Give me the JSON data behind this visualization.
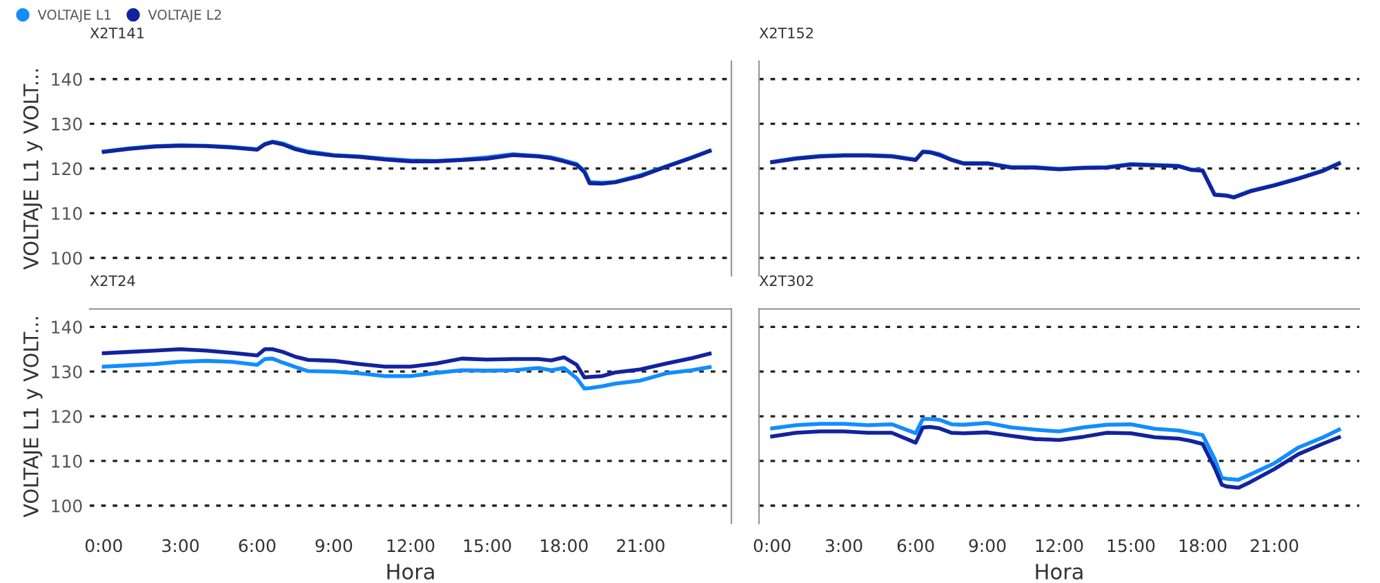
{
  "chart_data": [
    {
      "type": "line",
      "title": "X2T141",
      "ylabel": "VOLTAJE L1 y VOLT...",
      "legend": "top left",
      "grid": "y",
      "tick_labels": "y",
      "x": [
        0,
        1,
        2,
        3,
        4,
        5,
        6,
        6.3,
        6.6,
        7,
        7.5,
        8,
        9,
        10,
        11,
        12,
        13,
        14,
        15,
        16,
        17,
        17.5,
        18,
        18.5,
        18.8,
        19,
        19.5,
        20,
        21,
        22,
        23,
        23.7
      ],
      "xlim": [
        -0.55,
        24.55
      ],
      "ylim": [
        96,
        144
      ],
      "yticks": [
        100,
        110,
        120,
        130,
        140
      ],
      "series": [
        {
          "name": "VOLTAJE L1",
          "color": "#118dff",
          "values": [
            123.8,
            124.5,
            125,
            125.2,
            125.1,
            124.8,
            124.3,
            125.5,
            126,
            125.6,
            124.5,
            123.8,
            123,
            122.7,
            122.2,
            121.8,
            121.7,
            122,
            122.5,
            123.2,
            122.8,
            122.5,
            121.8,
            121,
            119.5,
            117,
            116.8,
            117,
            118.5,
            120.5,
            122.5,
            124
          ]
        },
        {
          "name": "VOLTAJE L2",
          "color": "#12239e",
          "values": [
            123.7,
            124.4,
            124.9,
            125.1,
            125,
            124.7,
            124.2,
            125.4,
            125.9,
            125.4,
            124.3,
            123.6,
            122.9,
            122.6,
            122,
            121.6,
            121.6,
            121.9,
            122.2,
            123,
            122.7,
            122.3,
            121.6,
            120.8,
            119.2,
            116.7,
            116.6,
            116.9,
            118.3,
            120.4,
            122.4,
            123.9
          ]
        }
      ]
    },
    {
      "type": "line",
      "title": "X2T152",
      "grid": "y",
      "tick_labels": false,
      "x": [
        0,
        1,
        2,
        3,
        4,
        5,
        6,
        6.3,
        6.6,
        7,
        7.5,
        8,
        9,
        10,
        11,
        12,
        13,
        14,
        15,
        16,
        17,
        17.5,
        18,
        18.5,
        19,
        19.3,
        20,
        21,
        22,
        23,
        23.7
      ],
      "xlim": [
        -0.55,
        24.55
      ],
      "ylim": [
        96,
        144
      ],
      "yticks": [
        100,
        110,
        120,
        130,
        140
      ],
      "series": [
        {
          "color": "#118dff",
          "values": [
            121.5,
            122.3,
            122.8,
            123,
            123,
            122.8,
            122,
            123.8,
            123.7,
            123.2,
            122,
            121.2,
            121.2,
            120.3,
            120.3,
            119.9,
            120.2,
            120.3,
            121,
            120.8,
            120.6,
            119.8,
            119.6,
            114.2,
            114,
            113.6,
            115,
            116.3,
            117.8,
            119.5,
            121.2
          ]
        },
        {
          "color": "#12239e",
          "values": [
            121.4,
            122.2,
            122.7,
            122.9,
            122.9,
            122.7,
            121.9,
            123.7,
            123.6,
            123,
            121.9,
            121.1,
            121.1,
            120.2,
            120.2,
            119.8,
            120.1,
            120.2,
            120.9,
            120.7,
            120.5,
            119.7,
            119.5,
            114.1,
            113.9,
            113.5,
            114.9,
            116.2,
            117.7,
            119.4,
            121.1
          ]
        }
      ]
    },
    {
      "type": "line",
      "title": "X2T24",
      "ylabel": "VOLTAJE L1 y VOLT...",
      "xlabel": "Hora",
      "grid": "y",
      "x": [
        0,
        1,
        2,
        3,
        4,
        5,
        6,
        6.3,
        6.6,
        7,
        7.5,
        8,
        9,
        10,
        11,
        12,
        13,
        14,
        15,
        16,
        17,
        17.5,
        18,
        18.5,
        18.8,
        19,
        19.5,
        20,
        21,
        22,
        23,
        23.7
      ],
      "xlim": [
        -0.55,
        24.55
      ],
      "ylim": [
        96,
        144
      ],
      "yticks": [
        100,
        110,
        120,
        130,
        140
      ],
      "xticks": [
        {
          "value": 0,
          "label": "0:00"
        },
        {
          "value": 3,
          "label": "3:00"
        },
        {
          "value": 6,
          "label": "6:00"
        },
        {
          "value": 9,
          "label": "9:00"
        },
        {
          "value": 12,
          "label": "12:00"
        },
        {
          "value": 15,
          "label": "15:00"
        },
        {
          "value": 18,
          "label": "18:00"
        },
        {
          "value": 21,
          "label": "21:00"
        }
      ],
      "series": [
        {
          "color": "#118dff",
          "values": [
            131.1,
            131.4,
            131.7,
            132.2,
            132.4,
            132.2,
            131.5,
            132.8,
            132.9,
            132,
            131,
            130.1,
            130,
            129.6,
            129,
            129,
            129.7,
            130.3,
            130.2,
            130.3,
            130.8,
            130.3,
            130.8,
            128.5,
            126.2,
            126.3,
            126.7,
            127.3,
            128,
            129.6,
            130.3,
            131
          ]
        },
        {
          "color": "#12239e",
          "values": [
            134.1,
            134.4,
            134.7,
            135,
            134.7,
            134.2,
            133.6,
            135,
            135,
            134.4,
            133.3,
            132.6,
            132.4,
            131.7,
            131.1,
            131.1,
            131.8,
            132.9,
            132.7,
            132.8,
            132.8,
            132.5,
            133.2,
            131.5,
            128.7,
            128.8,
            129,
            129.8,
            130.5,
            131.8,
            133,
            134
          ]
        }
      ]
    },
    {
      "type": "line",
      "title": "X2T302",
      "xlabel": "Hora",
      "grid": "y",
      "tick_labels": "x",
      "x": [
        0,
        1,
        2,
        3,
        4,
        5,
        6,
        6.3,
        6.6,
        7,
        7.5,
        8,
        9,
        10,
        11,
        12,
        13,
        14,
        15,
        16,
        17,
        17.5,
        18,
        18.5,
        18.8,
        19,
        19.5,
        20,
        21,
        22,
        23,
        23.7
      ],
      "xlim": [
        -0.55,
        24.55
      ],
      "ylim": [
        96,
        144
      ],
      "yticks": [
        100,
        110,
        120,
        130,
        140
      ],
      "xticks": [
        {
          "value": 0,
          "label": "0:00"
        },
        {
          "value": 3,
          "label": "3:00"
        },
        {
          "value": 6,
          "label": "6:00"
        },
        {
          "value": 9,
          "label": "9:00"
        },
        {
          "value": 12,
          "label": "12:00"
        },
        {
          "value": 15,
          "label": "15:00"
        },
        {
          "value": 18,
          "label": "18:00"
        },
        {
          "value": 21,
          "label": "21:00"
        }
      ],
      "series": [
        {
          "color": "#118dff",
          "values": [
            117.3,
            118,
            118.3,
            118.3,
            118,
            118.2,
            116.2,
            119.4,
            119.4,
            119.2,
            118.2,
            118.1,
            118.5,
            117.5,
            117,
            116.6,
            117.5,
            118.1,
            118.2,
            117.2,
            116.8,
            116.3,
            115.8,
            110.5,
            106.2,
            106,
            105.8,
            107,
            109.5,
            113,
            115.2,
            117
          ]
        },
        {
          "color": "#12239e",
          "values": [
            115.5,
            116.3,
            116.6,
            116.6,
            116.3,
            116.3,
            114.1,
            117.5,
            117.6,
            117.3,
            116.3,
            116.2,
            116.4,
            115.6,
            114.9,
            114.7,
            115.4,
            116.3,
            116.2,
            115.3,
            115,
            114.5,
            113.8,
            108.5,
            104.7,
            104.3,
            104,
            105.3,
            108.2,
            111.5,
            113.8,
            115.3
          ]
        }
      ]
    }
  ]
}
